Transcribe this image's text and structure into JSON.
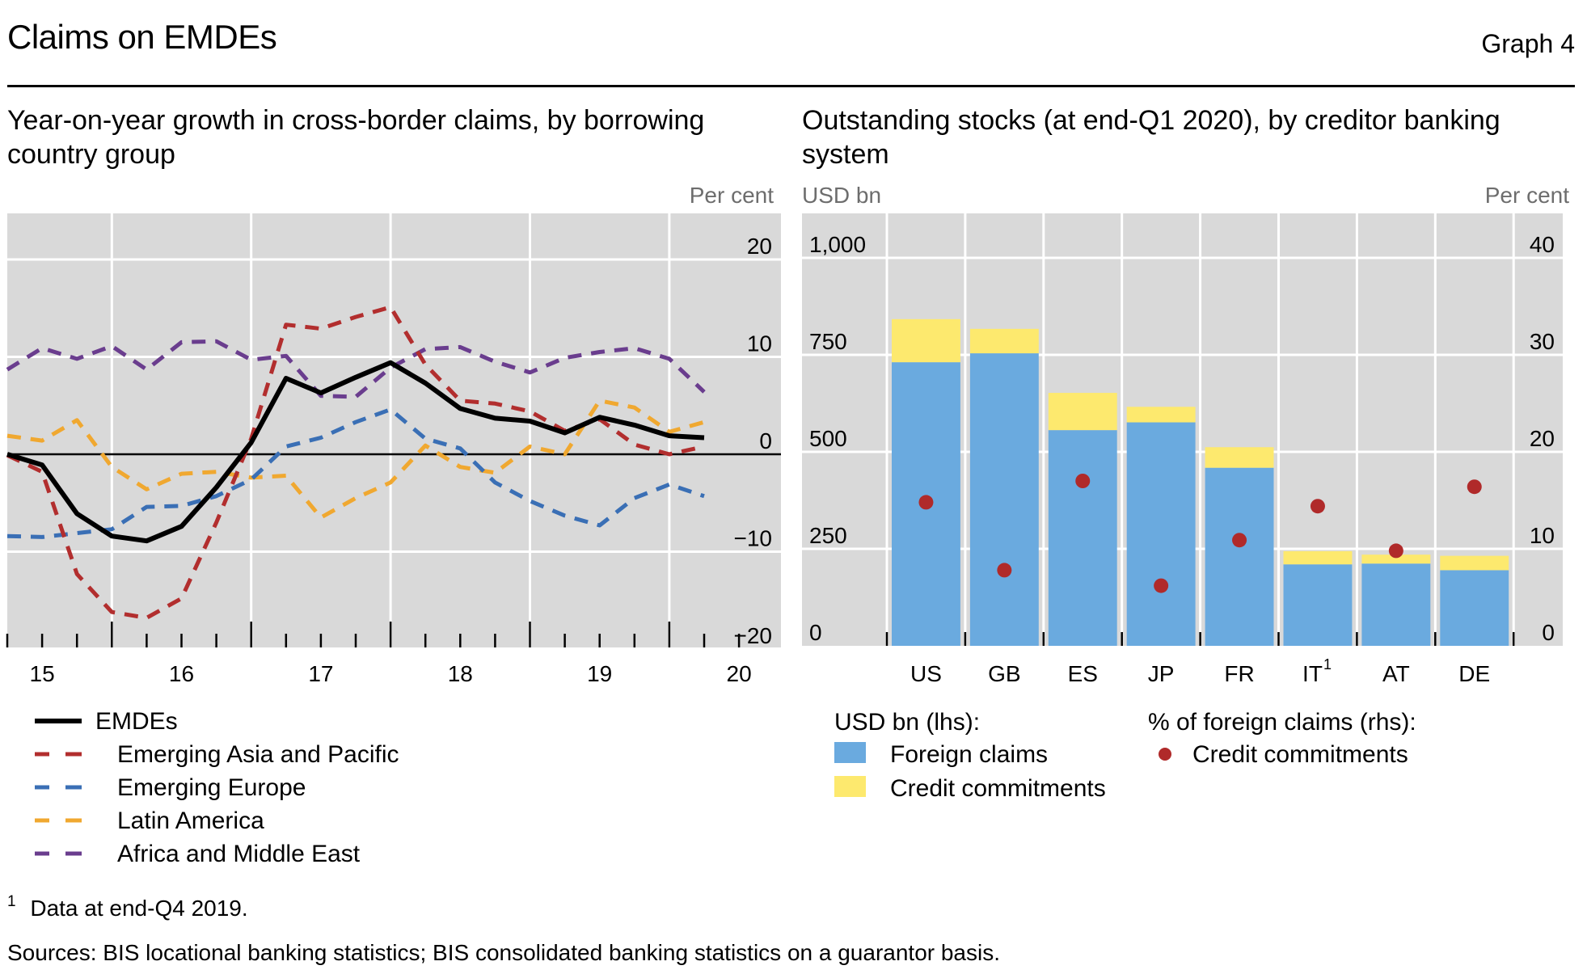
{
  "header": {
    "title": "Claims on EMDEs",
    "graph_number": "Graph 4"
  },
  "footnotes": {
    "note1_marker": "1",
    "note1_text": "Data at end-Q4 2019.",
    "sources": "Sources: BIS locational banking statistics; BIS consolidated banking statistics on a guarantor basis."
  },
  "colors": {
    "emdes": "#000000",
    "asia_pacific": "#b22e2e",
    "europe": "#3a6fb5",
    "latin_america": "#f0a830",
    "africa_me": "#6a3d8e",
    "foreign_claims": "#6aaadf",
    "credit_commitments": "#fde96e",
    "credit_commitments_dot": "#b02a2a",
    "plot_bg": "#d9d9d9",
    "grid": "#ffffff"
  },
  "chart_data": [
    {
      "type": "line",
      "title": "Year-on-year growth in cross-border claims, by borrowing country group",
      "ylabel": "Per cent",
      "y_axis_side": "right",
      "ylim": [
        -20,
        20
      ],
      "yticks": [
        20,
        10,
        0,
        -10,
        -20
      ],
      "ytick_labels": [
        "20",
        "10",
        "0",
        "−10",
        "−20"
      ],
      "xticks": [
        "15",
        "16",
        "17",
        "18",
        "19",
        "20"
      ],
      "x_frequency": "quarterly",
      "x": [
        "2015Q1",
        "2015Q2",
        "2015Q3",
        "2015Q4",
        "2016Q1",
        "2016Q2",
        "2016Q3",
        "2016Q4",
        "2017Q1",
        "2017Q2",
        "2017Q3",
        "2017Q4",
        "2018Q1",
        "2018Q2",
        "2018Q3",
        "2018Q4",
        "2019Q1",
        "2019Q2",
        "2019Q3",
        "2019Q4",
        "2020Q1"
      ],
      "grid": true,
      "legend_position": "bottom",
      "series": [
        {
          "name": "EMDEs",
          "key": "emdes",
          "style": "solid",
          "values": [
            0.0,
            -1.1,
            -6.1,
            -8.4,
            -8.9,
            -7.4,
            -3.4,
            1.2,
            7.8,
            6.3,
            7.9,
            9.4,
            7.3,
            4.7,
            3.7,
            3.4,
            2.2,
            3.8,
            3.0,
            1.9,
            1.7
          ]
        },
        {
          "name": "Emerging Asia and Pacific",
          "key": "asia_pacific",
          "style": "dashed",
          "values": [
            -0.1,
            -1.8,
            -12.3,
            -16.2,
            -16.8,
            -14.8,
            -7.0,
            1.6,
            13.3,
            12.9,
            14.1,
            15.1,
            9.2,
            5.5,
            5.2,
            4.4,
            2.4,
            3.6,
            1.0,
            0.0,
            0.8
          ]
        },
        {
          "name": "Emerging Europe",
          "key": "europe",
          "style": "dashed",
          "values": [
            -8.4,
            -8.5,
            -8.1,
            -7.7,
            -5.4,
            -5.3,
            -4.3,
            -2.6,
            0.8,
            1.7,
            3.3,
            4.6,
            1.6,
            0.6,
            -2.9,
            -4.8,
            -6.3,
            -7.3,
            -4.5,
            -3.1,
            -4.3
          ]
        },
        {
          "name": "Latin America",
          "key": "latin_america",
          "style": "dashed",
          "values": [
            1.9,
            1.4,
            3.5,
            -1.3,
            -3.6,
            -2.0,
            -1.8,
            -2.4,
            -2.2,
            -6.5,
            -4.5,
            -2.9,
            0.9,
            -1.3,
            -1.9,
            0.8,
            0.0,
            5.5,
            4.8,
            2.3,
            3.3
          ]
        },
        {
          "name": "Africa and Middle East",
          "key": "africa_me",
          "style": "dashed",
          "values": [
            8.7,
            10.9,
            9.8,
            11.1,
            8.7,
            11.5,
            11.6,
            9.7,
            10.1,
            6.0,
            5.9,
            8.9,
            10.8,
            11.0,
            9.5,
            8.4,
            9.9,
            10.5,
            10.9,
            9.8,
            6.4
          ]
        }
      ]
    },
    {
      "type": "bar",
      "stacked": true,
      "title": "Outstanding stocks (at end-Q1 2020), by creditor banking system",
      "ylabel_left": "USD bn",
      "ylabel_right": "Per cent",
      "ylim_left": [
        0,
        1000
      ],
      "yticks_left": [
        "0",
        "250",
        "500",
        "750",
        "1,000"
      ],
      "ylim_right": [
        0,
        40
      ],
      "yticks_right": [
        "0",
        "10",
        "20",
        "30",
        "40"
      ],
      "categories": [
        "US",
        "GB",
        "ES",
        "JP",
        "FR",
        "IT",
        "AT",
        "DE"
      ],
      "category_superscripts": [
        "",
        "",
        "",
        "",
        "",
        "1",
        "",
        ""
      ],
      "grid": true,
      "legend_position": "bottom",
      "legend_group_left": "USD bn (lhs):",
      "legend_group_right": "% of foreign claims (rhs):",
      "series": [
        {
          "name": "Foreign claims",
          "key": "foreign_claims",
          "axis": "left",
          "kind": "bar",
          "values": [
            731,
            754,
            556,
            576,
            459,
            210,
            212,
            195
          ]
        },
        {
          "name": "Credit commitments",
          "key": "credit_commitments",
          "axis": "left",
          "kind": "bar",
          "values": [
            111,
            63,
            96,
            40,
            53,
            34,
            23,
            37
          ]
        },
        {
          "name": "Credit commitments",
          "key": "credit_commitments_dot",
          "axis": "right",
          "kind": "dot",
          "values": [
            14.8,
            7.8,
            17.0,
            6.2,
            10.9,
            14.4,
            9.8,
            16.4
          ]
        }
      ]
    }
  ]
}
